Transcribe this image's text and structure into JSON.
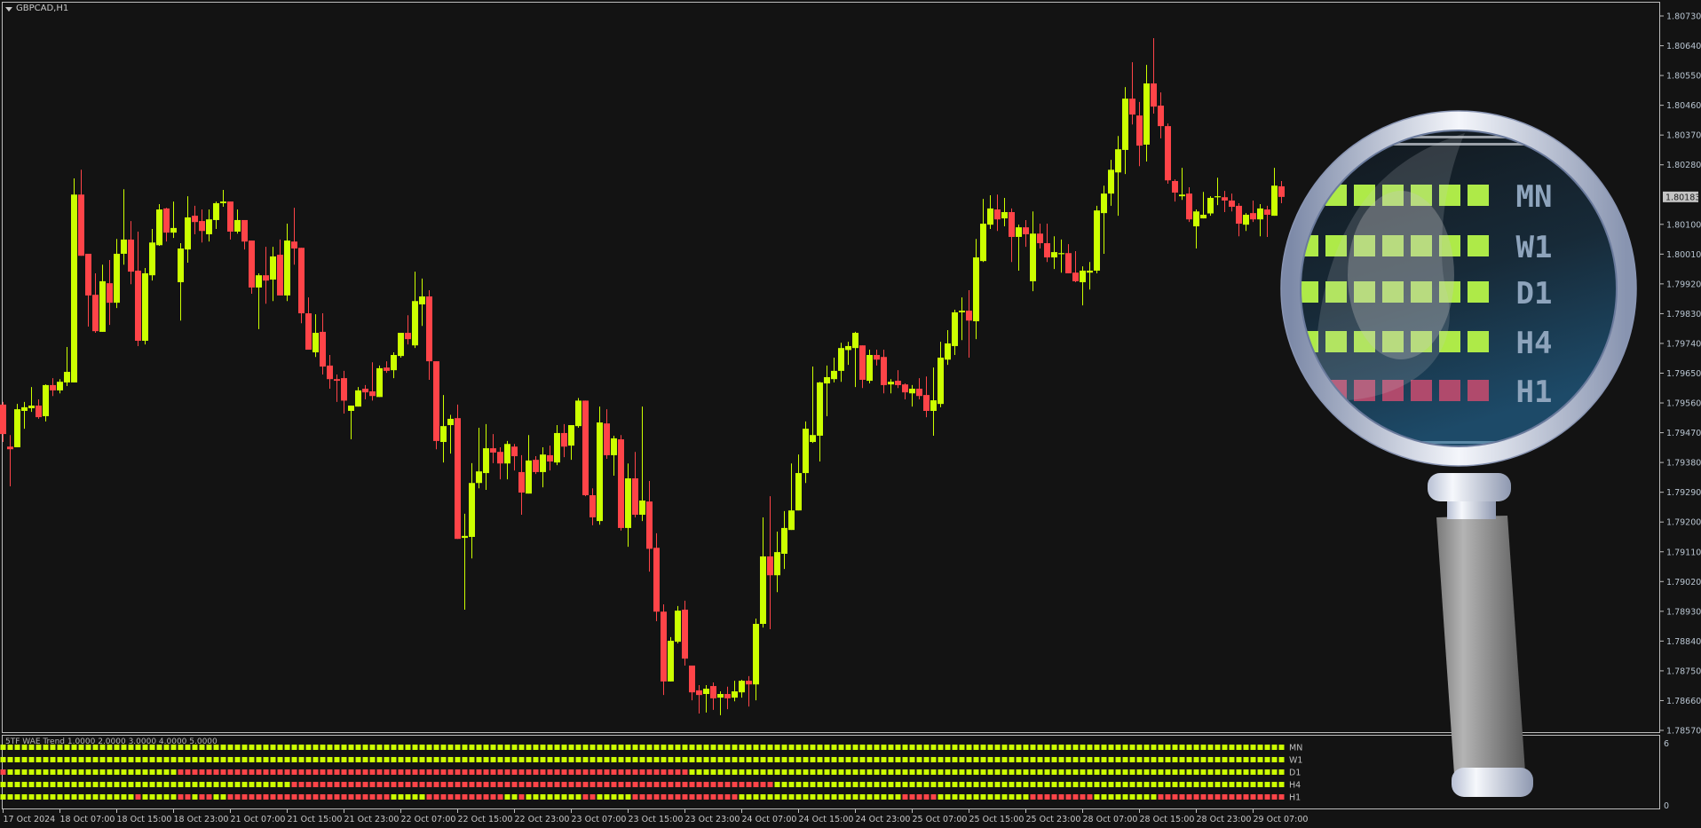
{
  "window": {
    "symbol_title": "GBPCAD,H1",
    "menu_icon": "triangle-down-icon"
  },
  "colors": {
    "background": "#131313",
    "bull": "#ccff00",
    "bear": "#ff4448",
    "frame": "#bcbcbc",
    "axis_text": "#b8c4d0"
  },
  "price_axis": {
    "labels": [
      "1.80730",
      "1.80640",
      "1.80550",
      "1.80460",
      "1.80370",
      "1.80280",
      "1.80100",
      "1.80010",
      "1.79920",
      "1.79830",
      "1.79740",
      "1.79650",
      "1.79560",
      "1.79470",
      "1.79380",
      "1.79290",
      "1.79200",
      "1.79110",
      "1.79020",
      "1.78930",
      "1.78840",
      "1.78750",
      "1.78660",
      "1.78570"
    ],
    "current_price": "1.80183"
  },
  "time_axis": {
    "labels": [
      "17 Oct 2024",
      "18 Oct 07:00",
      "18 Oct 15:00",
      "18 Oct 23:00",
      "21 Oct 07:00",
      "21 Oct 15:00",
      "21 Oct 23:00",
      "22 Oct 07:00",
      "22 Oct 15:00",
      "22 Oct 23:00",
      "23 Oct 07:00",
      "23 Oct 15:00",
      "23 Oct 23:00",
      "24 Oct 07:00",
      "24 Oct 15:00",
      "24 Oct 23:00",
      "25 Oct 07:00",
      "25 Oct 15:00",
      "25 Oct 23:00",
      "28 Oct 07:00",
      "28 Oct 15:00",
      "28 Oct 23:00",
      "29 Oct 07:00"
    ]
  },
  "indicator": {
    "title": "5TF WAE Trend 1.0000 2.0000 3.0000 4.0000 5.0000",
    "scale_max": "6",
    "scale_min": "0",
    "rows": [
      {
        "label": "MN",
        "runs": [
          [
            "up",
            181
          ]
        ]
      },
      {
        "label": "W1",
        "runs": [
          [
            "up",
            181
          ]
        ]
      },
      {
        "label": "D1",
        "runs": [
          [
            "down",
            1
          ],
          [
            "up",
            24
          ],
          [
            "down",
            72
          ],
          [
            "up",
            84
          ]
        ]
      },
      {
        "label": "H4",
        "runs": [
          [
            "up",
            41
          ],
          [
            "down",
            68
          ],
          [
            "up",
            72
          ]
        ]
      },
      {
        "label": "H1",
        "runs": [
          [
            "up",
            19
          ],
          [
            "down",
            1
          ],
          [
            "up",
            5
          ],
          [
            "down",
            2
          ],
          [
            "up",
            1
          ],
          [
            "down",
            2
          ],
          [
            "up",
            2
          ],
          [
            "down",
            23
          ],
          [
            "up",
            5
          ],
          [
            "down",
            11
          ],
          [
            "up",
            2
          ],
          [
            "down",
            1
          ],
          [
            "up",
            8
          ],
          [
            "down",
            2
          ],
          [
            "up",
            5
          ],
          [
            "down",
            15
          ],
          [
            "up",
            23
          ],
          [
            "down",
            5
          ],
          [
            "up",
            13
          ],
          [
            "down",
            9
          ],
          [
            "up",
            9
          ],
          [
            "down",
            18
          ]
        ]
      }
    ]
  },
  "magnifier": {
    "icon": "magnifying-glass-icon",
    "labels": [
      "MN",
      "W1",
      "D1",
      "H4",
      "H1"
    ]
  },
  "chart_data": {
    "type": "candlestick",
    "symbol": "GBPCAD",
    "timeframe": "H1",
    "ylim": [
      1.7857,
      1.8073
    ],
    "grid": false,
    "ohlc": [
      [
        1.79555,
        1.79563,
        1.79442,
        1.79466
      ],
      [
        1.79428,
        1.79463,
        1.79308,
        1.7942
      ],
      [
        1.79426,
        1.79557,
        1.79426,
        1.79541
      ],
      [
        1.79536,
        1.79563,
        1.79482,
        1.79547
      ],
      [
        1.79544,
        1.79608,
        1.79533,
        1.79552
      ],
      [
        1.79552,
        1.79571,
        1.79512,
        1.79517
      ],
      [
        1.7952,
        1.79616,
        1.79504,
        1.79614
      ],
      [
        1.79614,
        1.79635,
        1.79581,
        1.79598
      ],
      [
        1.79598,
        1.79632,
        1.79589,
        1.79624
      ],
      [
        1.79622,
        1.79729,
        1.79611,
        1.79654
      ],
      [
        1.79622,
        1.80239,
        1.79622,
        1.8019
      ],
      [
        1.8019,
        1.80265,
        1.80005,
        1.80005
      ],
      [
        1.80011,
        1.80011,
        1.79791,
        1.79885
      ],
      [
        1.79887,
        1.79952,
        1.79772,
        1.79777
      ],
      [
        1.79775,
        1.79978,
        1.79775,
        1.79928
      ],
      [
        1.79922,
        1.79992,
        1.79796,
        1.79863
      ],
      [
        1.79863,
        1.80056,
        1.79847,
        1.80011
      ],
      [
        1.80011,
        1.80206,
        1.79978,
        1.80054
      ],
      [
        1.80054,
        1.8011,
        1.79919,
        1.79957
      ],
      [
        1.7996,
        1.80078,
        1.79732,
        1.79748
      ],
      [
        1.79748,
        1.79968,
        1.79737,
        1.79952
      ],
      [
        1.79946,
        1.80086,
        1.7993,
        1.80045
      ],
      [
        1.80037,
        1.80161,
        1.80035,
        1.80145
      ],
      [
        1.80148,
        1.8015,
        1.80048,
        1.80075
      ],
      [
        1.80075,
        1.80169,
        1.80059,
        1.80089
      ],
      [
        1.79925,
        1.80043,
        1.79809,
        1.80027
      ],
      [
        1.80024,
        1.80185,
        1.79984,
        1.80121
      ],
      [
        1.80126,
        1.80156,
        1.8007,
        1.80107
      ],
      [
        1.8011,
        1.80145,
        1.80045,
        1.8008
      ],
      [
        1.8007,
        1.80145,
        1.80048,
        1.80115
      ],
      [
        1.80113,
        1.80169,
        1.80086,
        1.80164
      ],
      [
        1.80164,
        1.80204,
        1.80153,
        1.80169
      ],
      [
        1.80169,
        1.80169,
        1.80054,
        1.80078
      ],
      [
        1.80078,
        1.80145,
        1.80072,
        1.80113
      ],
      [
        1.80113,
        1.80113,
        1.80024,
        1.80048
      ],
      [
        1.80051,
        1.80051,
        1.7989,
        1.79909
      ],
      [
        1.79909,
        1.79952,
        1.79783,
        1.79946
      ],
      [
        1.79946,
        1.80032,
        1.7986,
        1.7993
      ],
      [
        1.79933,
        1.80032,
        1.79868,
        1.80003
      ],
      [
        1.80008,
        1.80054,
        1.79885,
        1.79885
      ],
      [
        1.79885,
        1.80102,
        1.79868,
        1.80051
      ],
      [
        1.80048,
        1.8015,
        1.79978,
        1.80027
      ],
      [
        1.80029,
        1.80029,
        1.79801,
        1.79831
      ],
      [
        1.79831,
        1.79879,
        1.79721,
        1.79721
      ],
      [
        1.79713,
        1.79828,
        1.79699,
        1.79772
      ],
      [
        1.79775,
        1.79831,
        1.79646,
        1.7967
      ],
      [
        1.79673,
        1.79705,
        1.79603,
        1.79632
      ],
      [
        1.79632,
        1.79646,
        1.79563,
        1.79627
      ],
      [
        1.79635,
        1.79657,
        1.79528,
        1.79567
      ],
      [
        1.79536,
        1.79552,
        1.7945,
        1.79552
      ],
      [
        1.79549,
        1.79608,
        1.79549,
        1.79598
      ],
      [
        1.79603,
        1.79614,
        1.79571,
        1.79592
      ],
      [
        1.79595,
        1.79683,
        1.79567,
        1.79581
      ],
      [
        1.79578,
        1.79673,
        1.79578,
        1.79665
      ],
      [
        1.79667,
        1.79686,
        1.79651,
        1.79657
      ],
      [
        1.79659,
        1.79713,
        1.79635,
        1.79705
      ],
      [
        1.79702,
        1.79772,
        1.79697,
        1.79772
      ],
      [
        1.79772,
        1.79825,
        1.79737,
        1.79753
      ],
      [
        1.79734,
        1.79957,
        1.79726,
        1.79868
      ],
      [
        1.79858,
        1.79936,
        1.79793,
        1.79882
      ],
      [
        1.79882,
        1.79901,
        1.7963,
        1.79686
      ],
      [
        1.79686,
        1.79686,
        1.7942,
        1.79445
      ],
      [
        1.79442,
        1.79584,
        1.7938,
        1.7949
      ],
      [
        1.79493,
        1.79524,
        1.79407,
        1.79512
      ],
      [
        1.79514,
        1.79555,
        1.79149,
        1.79149
      ],
      [
        1.79152,
        1.79225,
        1.78935,
        1.79158
      ],
      [
        1.79155,
        1.79378,
        1.7909,
        1.79318
      ],
      [
        1.79318,
        1.79485,
        1.79302,
        1.79353
      ],
      [
        1.79348,
        1.79496,
        1.79297,
        1.79423
      ],
      [
        1.79423,
        1.79466,
        1.79378,
        1.7941
      ],
      [
        1.79412,
        1.79426,
        1.79329,
        1.79377
      ],
      [
        1.79377,
        1.79445,
        1.79329,
        1.79436
      ],
      [
        1.79428,
        1.79436,
        1.79356,
        1.79399
      ],
      [
        1.79351,
        1.79402,
        1.79222,
        1.79289
      ],
      [
        1.79286,
        1.79463,
        1.79286,
        1.79386
      ],
      [
        1.79388,
        1.79399,
        1.79345,
        1.79351
      ],
      [
        1.79351,
        1.79426,
        1.79305,
        1.79404
      ],
      [
        1.79402,
        1.79431,
        1.79356,
        1.79383
      ],
      [
        1.7938,
        1.79493,
        1.79372,
        1.79469
      ],
      [
        1.79469,
        1.79496,
        1.79396,
        1.79428
      ],
      [
        1.79431,
        1.79493,
        1.79388,
        1.79493
      ],
      [
        1.7949,
        1.79575,
        1.79485,
        1.79567
      ],
      [
        1.79567,
        1.79567,
        1.79278,
        1.79281
      ],
      [
        1.79281,
        1.79302,
        1.7919,
        1.79214
      ],
      [
        1.79203,
        1.79549,
        1.79192,
        1.79501
      ],
      [
        1.79498,
        1.79541,
        1.79391,
        1.79402
      ],
      [
        1.79402,
        1.79461,
        1.7934,
        1.79453
      ],
      [
        1.7945,
        1.79463,
        1.79174,
        1.79182
      ],
      [
        1.79182,
        1.79377,
        1.79125,
        1.79332
      ],
      [
        1.79332,
        1.79412,
        1.79214,
        1.79222
      ],
      [
        1.79222,
        1.79549,
        1.79203,
        1.79265
      ],
      [
        1.79262,
        1.79324,
        1.7905,
        1.79119
      ],
      [
        1.79122,
        1.79166,
        1.789,
        1.78929
      ],
      [
        1.78929,
        1.78951,
        1.78677,
        1.78718
      ],
      [
        1.78718,
        1.78852,
        1.78718,
        1.78841
      ],
      [
        1.78838,
        1.78946,
        1.78833,
        1.78932
      ],
      [
        1.78935,
        1.78962,
        1.78766,
        1.78787
      ],
      [
        1.78766,
        1.78766,
        1.78661,
        1.78685
      ],
      [
        1.78691,
        1.78707,
        1.78621,
        1.78677
      ],
      [
        1.7868,
        1.78707,
        1.78624,
        1.78696
      ],
      [
        1.78704,
        1.78715,
        1.78632,
        1.78667
      ],
      [
        1.78669,
        1.78688,
        1.78616,
        1.7868
      ],
      [
        1.7868,
        1.78702,
        1.78634,
        1.78667
      ],
      [
        1.78669,
        1.7872,
        1.78658,
        1.78688
      ],
      [
        1.78685,
        1.78723,
        1.78669,
        1.7872
      ],
      [
        1.7872,
        1.78734,
        1.78642,
        1.78709
      ],
      [
        1.78709,
        1.78908,
        1.78661,
        1.78892
      ],
      [
        1.78892,
        1.79214,
        1.78881,
        1.79096
      ],
      [
        1.79096,
        1.79278,
        1.78876,
        1.79039
      ],
      [
        1.79039,
        1.79171,
        1.78988,
        1.79109
      ],
      [
        1.79104,
        1.79233,
        1.79058,
        1.79182
      ],
      [
        1.79176,
        1.79377,
        1.79176,
        1.79235
      ],
      [
        1.79235,
        1.79404,
        1.79235,
        1.79348
      ],
      [
        1.79348,
        1.79504,
        1.79318,
        1.79482
      ],
      [
        1.79442,
        1.7967,
        1.79439,
        1.79463
      ],
      [
        1.79461,
        1.79624,
        1.79383,
        1.79622
      ],
      [
        1.79619,
        1.79673,
        1.7952,
        1.79638
      ],
      [
        1.79632,
        1.79697,
        1.79622,
        1.79657
      ],
      [
        1.79657,
        1.79742,
        1.79624,
        1.79726
      ],
      [
        1.7972,
        1.79745,
        1.79675,
        1.79732
      ],
      [
        1.79726,
        1.79775,
        1.79608,
        1.79772
      ],
      [
        1.79734,
        1.79734,
        1.79605,
        1.7963
      ],
      [
        1.79627,
        1.79721,
        1.79619,
        1.79705
      ],
      [
        1.79705,
        1.79721,
        1.79673,
        1.79691
      ],
      [
        1.79699,
        1.79721,
        1.79589,
        1.79614
      ],
      [
        1.79616,
        1.79632,
        1.79589,
        1.79624
      ],
      [
        1.79627,
        1.79659,
        1.79605,
        1.79614
      ],
      [
        1.79616,
        1.79619,
        1.79571,
        1.79592
      ],
      [
        1.79589,
        1.79614,
        1.79549,
        1.79603
      ],
      [
        1.79603,
        1.79635,
        1.79571,
        1.79581
      ],
      [
        1.79584,
        1.7964,
        1.79517,
        1.79536
      ],
      [
        1.79536,
        1.79667,
        1.79461,
        1.79568
      ],
      [
        1.79557,
        1.79745,
        1.79547,
        1.79697
      ],
      [
        1.79691,
        1.7978,
        1.79675,
        1.7974
      ],
      [
        1.79732,
        1.79842,
        1.79705,
        1.79834
      ],
      [
        1.79834,
        1.79879,
        1.7975,
        1.79839
      ],
      [
        1.79839,
        1.79901,
        1.79697,
        1.79809
      ],
      [
        1.79807,
        1.80056,
        1.79753,
        1.8
      ],
      [
        1.79989,
        1.80177,
        1.79986,
        1.80102
      ],
      [
        1.80099,
        1.80188,
        1.80086,
        1.80148
      ],
      [
        1.80145,
        1.8019,
        1.8008,
        1.80115
      ],
      [
        1.80118,
        1.8018,
        1.80094,
        1.80137
      ],
      [
        1.80137,
        1.80148,
        1.79986,
        1.80062
      ],
      [
        1.80062,
        1.80099,
        1.7996,
        1.80091
      ],
      [
        1.80091,
        1.80113,
        1.80032,
        1.8007
      ],
      [
        1.79928,
        1.80139,
        1.79898,
        1.80072
      ],
      [
        1.80072,
        1.80102,
        1.80027,
        1.80043
      ],
      [
        1.80043,
        1.80102,
        1.79986,
        1.8
      ],
      [
        1.8,
        1.80064,
        1.79965,
        1.80016
      ],
      [
        1.80011,
        1.80054,
        1.79954,
        1.80013
      ],
      [
        1.80013,
        1.8004,
        1.79952,
        1.79952
      ],
      [
        1.79954,
        1.80019,
        1.79925,
        1.79928
      ],
      [
        1.79925,
        1.79973,
        1.79855,
        1.7996
      ],
      [
        1.79954,
        1.79986,
        1.79903,
        1.7996
      ],
      [
        1.7996,
        1.80156,
        1.79952,
        1.80142
      ],
      [
        1.80134,
        1.80217,
        1.80011,
        1.80193
      ],
      [
        1.80193,
        1.80295,
        1.80156,
        1.80265
      ],
      [
        1.80257,
        1.80367,
        1.80126,
        1.80327
      ],
      [
        1.80325,
        1.80515,
        1.80252,
        1.8048
      ],
      [
        1.8048,
        1.8059,
        1.80402,
        1.80432
      ],
      [
        1.80429,
        1.8047,
        1.80276,
        1.80338
      ],
      [
        1.80341,
        1.80582,
        1.8029,
        1.80526
      ],
      [
        1.80526,
        1.80663,
        1.80435,
        1.80456
      ],
      [
        1.80459,
        1.80499,
        1.8036,
        1.80397
      ],
      [
        1.80397,
        1.80405,
        1.80223,
        1.80233
      ],
      [
        1.80231,
        1.80236,
        1.80169,
        1.80196
      ],
      [
        1.80185,
        1.80271,
        1.80174,
        1.8019
      ],
      [
        1.80193,
        1.80212,
        1.80107,
        1.80115
      ],
      [
        1.80094,
        1.80145,
        1.80027,
        1.80139
      ],
      [
        1.80118,
        1.80198,
        1.80118,
        1.80129
      ],
      [
        1.80133,
        1.80185,
        1.80126,
        1.8018
      ],
      [
        1.80182,
        1.80241,
        1.80158,
        1.80185
      ],
      [
        1.80182,
        1.80201,
        1.80137,
        1.80172
      ],
      [
        1.80172,
        1.80193,
        1.80139,
        1.80153
      ],
      [
        1.80156,
        1.80164,
        1.80064,
        1.80102
      ],
      [
        1.80099,
        1.80134,
        1.8008,
        1.80129
      ],
      [
        1.80134,
        1.80172,
        1.80107,
        1.80115
      ],
      [
        1.80115,
        1.80161,
        1.80064,
        1.80148
      ],
      [
        1.80145,
        1.80156,
        1.80062,
        1.80129
      ],
      [
        1.80126,
        1.80271,
        1.80126,
        1.80217
      ],
      [
        1.80215,
        1.80231,
        1.80164,
        1.80183
      ]
    ]
  }
}
